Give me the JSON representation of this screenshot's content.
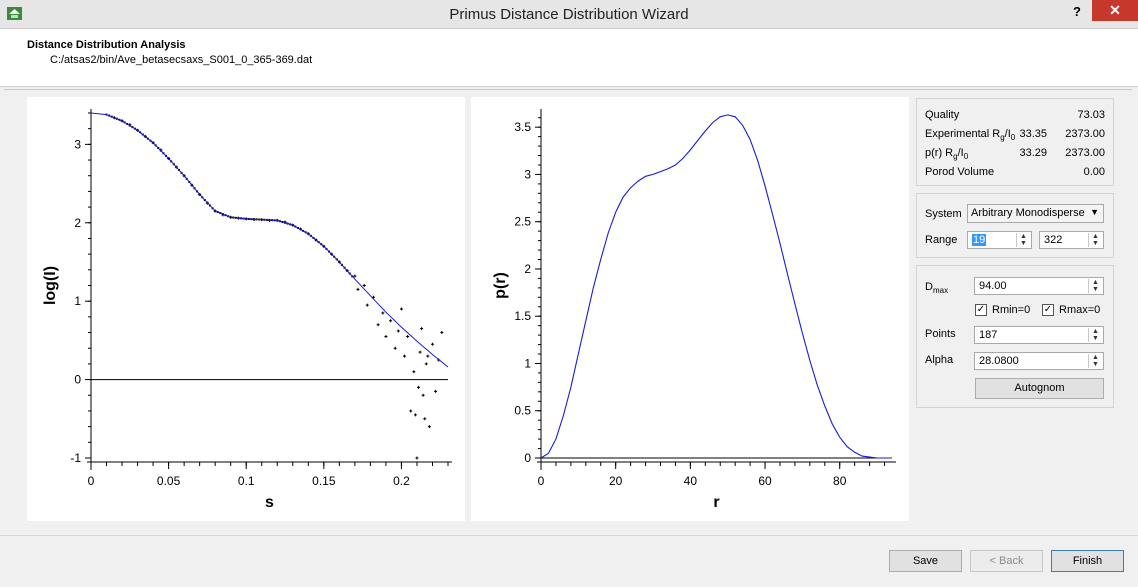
{
  "window": {
    "title": "Primus Distance Distribution Wizard",
    "help_label": "?",
    "close_label": "✕"
  },
  "header": {
    "title": "Distance Distribution Analysis",
    "path": "C:/atsas2/bin/Ave_betasecsaxs_S001_0_365-369.dat"
  },
  "stats": {
    "quality_label": "Quality",
    "quality_value": "73.03",
    "exp_label": "Experimental R",
    "exp_sub_g": "g",
    "exp_sep": "/I",
    "exp_sub_0": "0",
    "exp_rg": "33.35",
    "exp_i0": "2373.00",
    "pr_label": "p(r) R",
    "pr_sub_g": "g",
    "pr_sep": "/I",
    "pr_sub_0": "0",
    "pr_rg": "33.29",
    "pr_i0": "2373.00",
    "porod_label": "Porod Volume",
    "porod_value": "0.00"
  },
  "system": {
    "system_label": "System",
    "system_value": "Arbitrary Monodisperse",
    "range_label": "Range",
    "range_start": "19",
    "range_end": "322"
  },
  "params": {
    "dmax_label": "D",
    "dmax_sub": "max",
    "dmax_value": "94.00",
    "rmin_label": "Rmin=0",
    "rmax_label": "Rmax=0",
    "points_label": "Points",
    "points_value": "187",
    "alpha_label": "Alpha",
    "alpha_value": "28.0800",
    "autognom_label": "Autognom"
  },
  "footer": {
    "save_label": "Save",
    "back_label": "< Back",
    "finish_label": "Finish"
  },
  "chart_data": [
    {
      "type": "scatter",
      "xlabel": "s",
      "ylabel": "log(I)",
      "xlim": [
        0,
        0.23
      ],
      "ylim": [
        -1,
        3.4
      ],
      "xticks": [
        "0",
        "0.05",
        "0.1",
        "0.15",
        "0.2"
      ],
      "yticks": [
        "-1",
        "0",
        "1",
        "2",
        "3"
      ],
      "fit_line": {
        "x": [
          0,
          0.01,
          0.02,
          0.03,
          0.04,
          0.05,
          0.06,
          0.07,
          0.08,
          0.09,
          0.1,
          0.11,
          0.12,
          0.13,
          0.14,
          0.15,
          0.16,
          0.17,
          0.18,
          0.19,
          0.2,
          0.21,
          0.22,
          0.23
        ],
        "y": [
          3.4,
          3.38,
          3.3,
          3.18,
          3.02,
          2.82,
          2.6,
          2.36,
          2.15,
          2.07,
          2.05,
          2.04,
          2.03,
          1.97,
          1.86,
          1.7,
          1.5,
          1.28,
          1.07,
          0.86,
          0.67,
          0.49,
          0.32,
          0.16
        ]
      },
      "points": {
        "x": [
          0.015,
          0.02,
          0.025,
          0.03,
          0.035,
          0.04,
          0.045,
          0.05,
          0.055,
          0.06,
          0.065,
          0.07,
          0.075,
          0.08,
          0.085,
          0.09,
          0.095,
          0.1,
          0.105,
          0.11,
          0.115,
          0.12,
          0.125,
          0.13,
          0.135,
          0.14,
          0.145,
          0.15,
          0.155,
          0.16,
          0.165,
          0.17,
          0.172,
          0.176,
          0.178,
          0.182,
          0.185,
          0.188,
          0.19,
          0.193,
          0.196,
          0.198,
          0.2,
          0.202,
          0.204,
          0.206,
          0.208,
          0.21,
          0.212,
          0.214,
          0.216,
          0.218,
          0.22,
          0.222,
          0.224,
          0.226,
          0.209,
          0.211,
          0.213,
          0.215,
          0.217
        ],
        "y": [
          3.34,
          3.3,
          3.25,
          3.18,
          3.1,
          3.02,
          2.93,
          2.82,
          2.71,
          2.6,
          2.48,
          2.36,
          2.25,
          2.15,
          2.1,
          2.07,
          2.06,
          2.05,
          2.04,
          2.04,
          2.03,
          2.03,
          2.01,
          1.97,
          1.92,
          1.86,
          1.78,
          1.7,
          1.6,
          1.5,
          1.39,
          1.32,
          1.15,
          1.2,
          0.95,
          1.05,
          0.7,
          0.85,
          0.55,
          0.75,
          0.4,
          0.62,
          0.9,
          0.3,
          0.55,
          -0.4,
          0.1,
          -1.0,
          0.35,
          -0.2,
          0.2,
          -0.6,
          0.45,
          -0.15,
          0.25,
          0.6,
          -0.45,
          -0.1,
          0.65,
          -0.5,
          0.3
        ]
      }
    },
    {
      "type": "line",
      "xlabel": "r",
      "ylabel": "p(r)",
      "xlim": [
        0,
        94
      ],
      "ylim": [
        0,
        3.65
      ],
      "xticks": [
        "0",
        "20",
        "40",
        "60",
        "80"
      ],
      "yticks": [
        "0",
        "0.5",
        "1",
        "1.5",
        "2",
        "2.5",
        "3",
        "3.5"
      ],
      "x": [
        0,
        2,
        4,
        6,
        8,
        10,
        12,
        14,
        16,
        18,
        20,
        22,
        24,
        26,
        28,
        30,
        32,
        34,
        36,
        38,
        40,
        42,
        44,
        46,
        48,
        50,
        52,
        54,
        56,
        58,
        60,
        62,
        64,
        66,
        68,
        70,
        72,
        74,
        76,
        78,
        80,
        82,
        84,
        86,
        88,
        90,
        92,
        94
      ],
      "y": [
        0,
        0.05,
        0.2,
        0.45,
        0.75,
        1.1,
        1.45,
        1.8,
        2.1,
        2.38,
        2.6,
        2.76,
        2.86,
        2.93,
        2.98,
        3.0,
        3.03,
        3.06,
        3.1,
        3.17,
        3.26,
        3.36,
        3.46,
        3.55,
        3.61,
        3.63,
        3.61,
        3.52,
        3.37,
        3.15,
        2.88,
        2.58,
        2.27,
        1.95,
        1.63,
        1.32,
        1.03,
        0.77,
        0.55,
        0.36,
        0.22,
        0.12,
        0.06,
        0.02,
        0.01,
        0,
        0,
        0
      ]
    }
  ]
}
